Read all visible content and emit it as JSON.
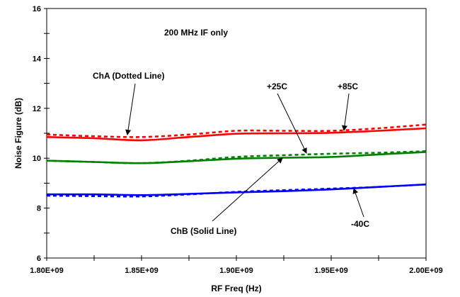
{
  "chart_data": {
    "type": "line",
    "title": "",
    "xlabel": "RF Freq (Hz)",
    "ylabel": "Noise Figure (dB)",
    "xlim": [
      1800000000,
      2000000000
    ],
    "ylim": [
      6,
      16
    ],
    "x_ticks": [
      1800000000,
      1850000000,
      1900000000,
      1950000000,
      2000000000
    ],
    "x_tick_labels": [
      "1.80E+09",
      "1.85E+09",
      "1.90E+09",
      "1.95E+09",
      "2.00E+09"
    ],
    "y_ticks": [
      6,
      8,
      10,
      12,
      14,
      16
    ],
    "y_tick_labels": [
      "6",
      "8",
      "10",
      "12",
      "14",
      "16"
    ],
    "grid": false,
    "x": [
      1800000000,
      1825000000,
      1850000000,
      1875000000,
      1900000000,
      1925000000,
      1950000000,
      1975000000,
      2000000000
    ],
    "series": [
      {
        "color": "#ff0000",
        "style": "dotted",
        "values": [
          10.95,
          10.88,
          10.85,
          10.95,
          11.1,
          11.1,
          11.1,
          11.2,
          11.35
        ]
      },
      {
        "color": "#ff0000",
        "style": "solid",
        "values": [
          10.85,
          10.8,
          10.72,
          10.85,
          10.98,
          11.0,
          11.02,
          11.1,
          11.2
        ]
      },
      {
        "color": "#008000",
        "style": "dotted",
        "values": [
          9.9,
          9.85,
          9.8,
          9.9,
          10.05,
          10.12,
          10.18,
          10.22,
          10.28
        ]
      },
      {
        "color": "#008000",
        "style": "solid",
        "values": [
          9.9,
          9.85,
          9.8,
          9.88,
          9.98,
          10.02,
          10.05,
          10.15,
          10.25
        ]
      },
      {
        "color": "#0000ff",
        "style": "dotted",
        "values": [
          8.5,
          8.48,
          8.47,
          8.55,
          8.65,
          8.72,
          8.78,
          8.85,
          8.95
        ]
      },
      {
        "color": "#0000ff",
        "style": "solid",
        "values": [
          8.55,
          8.55,
          8.52,
          8.57,
          8.63,
          8.68,
          8.75,
          8.85,
          8.95
        ]
      }
    ],
    "annotations": {
      "if_note": "200 MHz IF only",
      "cha_label": "ChA (Dotted Line)",
      "chb_label": "ChB (Solid Line)",
      "temp_25": "+25C",
      "temp_85": "+85C",
      "temp_m40": "-40C"
    }
  }
}
